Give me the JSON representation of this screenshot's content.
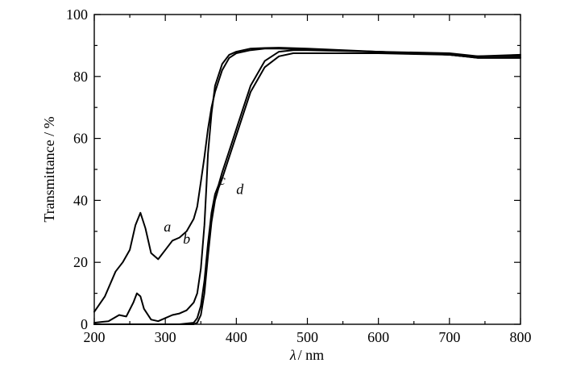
{
  "chart_data": {
    "type": "line",
    "xlabel_symbol": "λ",
    "xlabel_unit": "/ nm",
    "ylabel": "Transmittance / %",
    "xlim": [
      200,
      800
    ],
    "ylim": [
      0,
      100
    ],
    "x_ticks": [
      200,
      300,
      400,
      500,
      600,
      700,
      800
    ],
    "y_ticks": [
      0,
      20,
      40,
      60,
      80,
      100
    ],
    "grid": false,
    "series": [
      {
        "name": "a",
        "x": [
          200,
          215,
          230,
          240,
          250,
          258,
          265,
          272,
          280,
          290,
          300,
          310,
          320,
          330,
          340,
          345,
          350,
          355,
          360,
          365,
          370,
          380,
          390,
          400,
          420,
          440,
          460,
          500,
          600,
          700,
          720,
          740,
          800
        ],
        "y": [
          4,
          9,
          17,
          20,
          24,
          32,
          36,
          31,
          23,
          21,
          24,
          27,
          28,
          30,
          34,
          38,
          46,
          54,
          63,
          70,
          75,
          82,
          86,
          87.5,
          88.5,
          89,
          89,
          88.7,
          88,
          87,
          86.5,
          86,
          86
        ]
      },
      {
        "name": "b",
        "x": [
          200,
          220,
          235,
          245,
          255,
          260,
          265,
          270,
          280,
          290,
          300,
          310,
          320,
          330,
          340,
          345,
          350,
          355,
          358,
          360,
          365,
          370,
          380,
          390,
          400,
          420,
          440,
          460,
          500,
          600,
          700,
          720,
          740,
          800
        ],
        "y": [
          0.5,
          1,
          3,
          2.5,
          7,
          10,
          9,
          5,
          1.5,
          1,
          2,
          3,
          3.5,
          4.5,
          7,
          10,
          18,
          32,
          45,
          55,
          68,
          77,
          84,
          87,
          88,
          89,
          89.2,
          89.3,
          89,
          88,
          87.5,
          87,
          86.5,
          86.5
        ]
      },
      {
        "name": "c",
        "x": [
          200,
          280,
          320,
          340,
          345,
          350,
          355,
          360,
          365,
          370,
          375,
          380,
          390,
          400,
          410,
          420,
          440,
          460,
          480,
          500,
          600,
          700,
          720,
          740,
          800
        ],
        "y": [
          0,
          0,
          0,
          0.5,
          2,
          6,
          14,
          26,
          36,
          42,
          45,
          49,
          56,
          63,
          70,
          77,
          85,
          88,
          88.5,
          88.5,
          88,
          87,
          86.5,
          86.5,
          87
        ]
      },
      {
        "name": "d",
        "x": [
          200,
          280,
          320,
          340,
          345,
          350,
          355,
          360,
          365,
          370,
          375,
          380,
          390,
          400,
          410,
          420,
          440,
          460,
          480,
          500,
          600,
          700,
          720,
          740,
          800
        ],
        "y": [
          0,
          0,
          0,
          0,
          0.5,
          3,
          10,
          22,
          33,
          40,
          44,
          47,
          54,
          61,
          68,
          75,
          83,
          86.5,
          87.5,
          87.5,
          87.5,
          87,
          86.5,
          86,
          86
        ]
      }
    ]
  }
}
